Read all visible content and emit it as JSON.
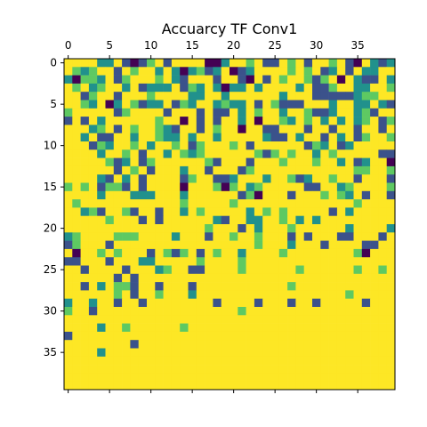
{
  "chart_data": {
    "type": "heatmap",
    "title": "Accuarcy TF Conv1",
    "xlabel": "",
    "ylabel": "",
    "rows": 40,
    "cols": 40,
    "x_tick_position": "top",
    "x_tick_values": [
      0,
      5,
      10,
      15,
      20,
      25,
      30,
      35
    ],
    "x_tick_labels": [
      "0",
      "5",
      "10",
      "15",
      "20",
      "25",
      "30",
      "35"
    ],
    "y_tick_values": [
      0,
      5,
      10,
      15,
      20,
      25,
      30,
      35
    ],
    "y_tick_labels": [
      "0",
      "5",
      "10",
      "15",
      "20",
      "25",
      "30",
      "35"
    ],
    "colormap": "viridis",
    "value_range": [
      0,
      1
    ],
    "grid": false,
    "colors": [
      "#440154",
      "#3b528b",
      "#21918c",
      "#5ec962",
      "#fde725"
    ],
    "value_rows": [
      "4444224101341444400244341143414434104212",
      "4323441434424202312401244443434124142244",
      "2033241344434214441441041434431340421142",
      "4342344241222413242022424444241134422443",
      "4413441444344442244244444424441111123344",
      "4432402431224132442322414311144424422421",
      "3444441344441444141142434424431124423144",
      "1414244444434404141442404432434242423413",
      "4442341434432144143440441144414414414414",
      "4424114424432242442444442114244142413443",
      "4441324434244341344434144444413241244444",
      "4444244341442432344444431343442434444411",
      "4444431241344444431444144434443442412440",
      "4444441434144424414441344444444444433443",
      "4444214241444413441124442443124434414441",
      "3434133141444404443034234444411442344443",
      "4444244422244424444441304441444343241441",
      "4344444444444434444434444444444444434444",
      "4423144314414424344444243434444414244444",
      "4444434441414444442144224434242444444444",
      "4444444444444444434441424443444444244442",
      "2344443334444244414434434441414441144414",
      "1344414444444444444444434442444144441144",
      "4044343444143134143442444434444444430444",
      "1144414442244444344443444444444444444444",
      "4414444144423441144443444444344444434434",
      "4444441414444444444444444444444444444444",
      "4414243314414441444444444443444444444444",
      "4444443414434442444444444444444444344444",
      "2442441441444444441444414441441444441444",
      "3441444444444444444443444444444444444444",
      "4444444444444444444444444444444444444444",
      "4444244344444434444444444444444444444444",
      "1444444444444444444444444444444444444444",
      "4444444414444444444444444444444444444444",
      "4444244444444444444444444444444444444444",
      "4444444444444444444444444444444444444444",
      "4444444444444444444444444444444444444444",
      "4444444444444444444444444444444444444444",
      "4444444444444444444444444444444444444444"
    ]
  }
}
